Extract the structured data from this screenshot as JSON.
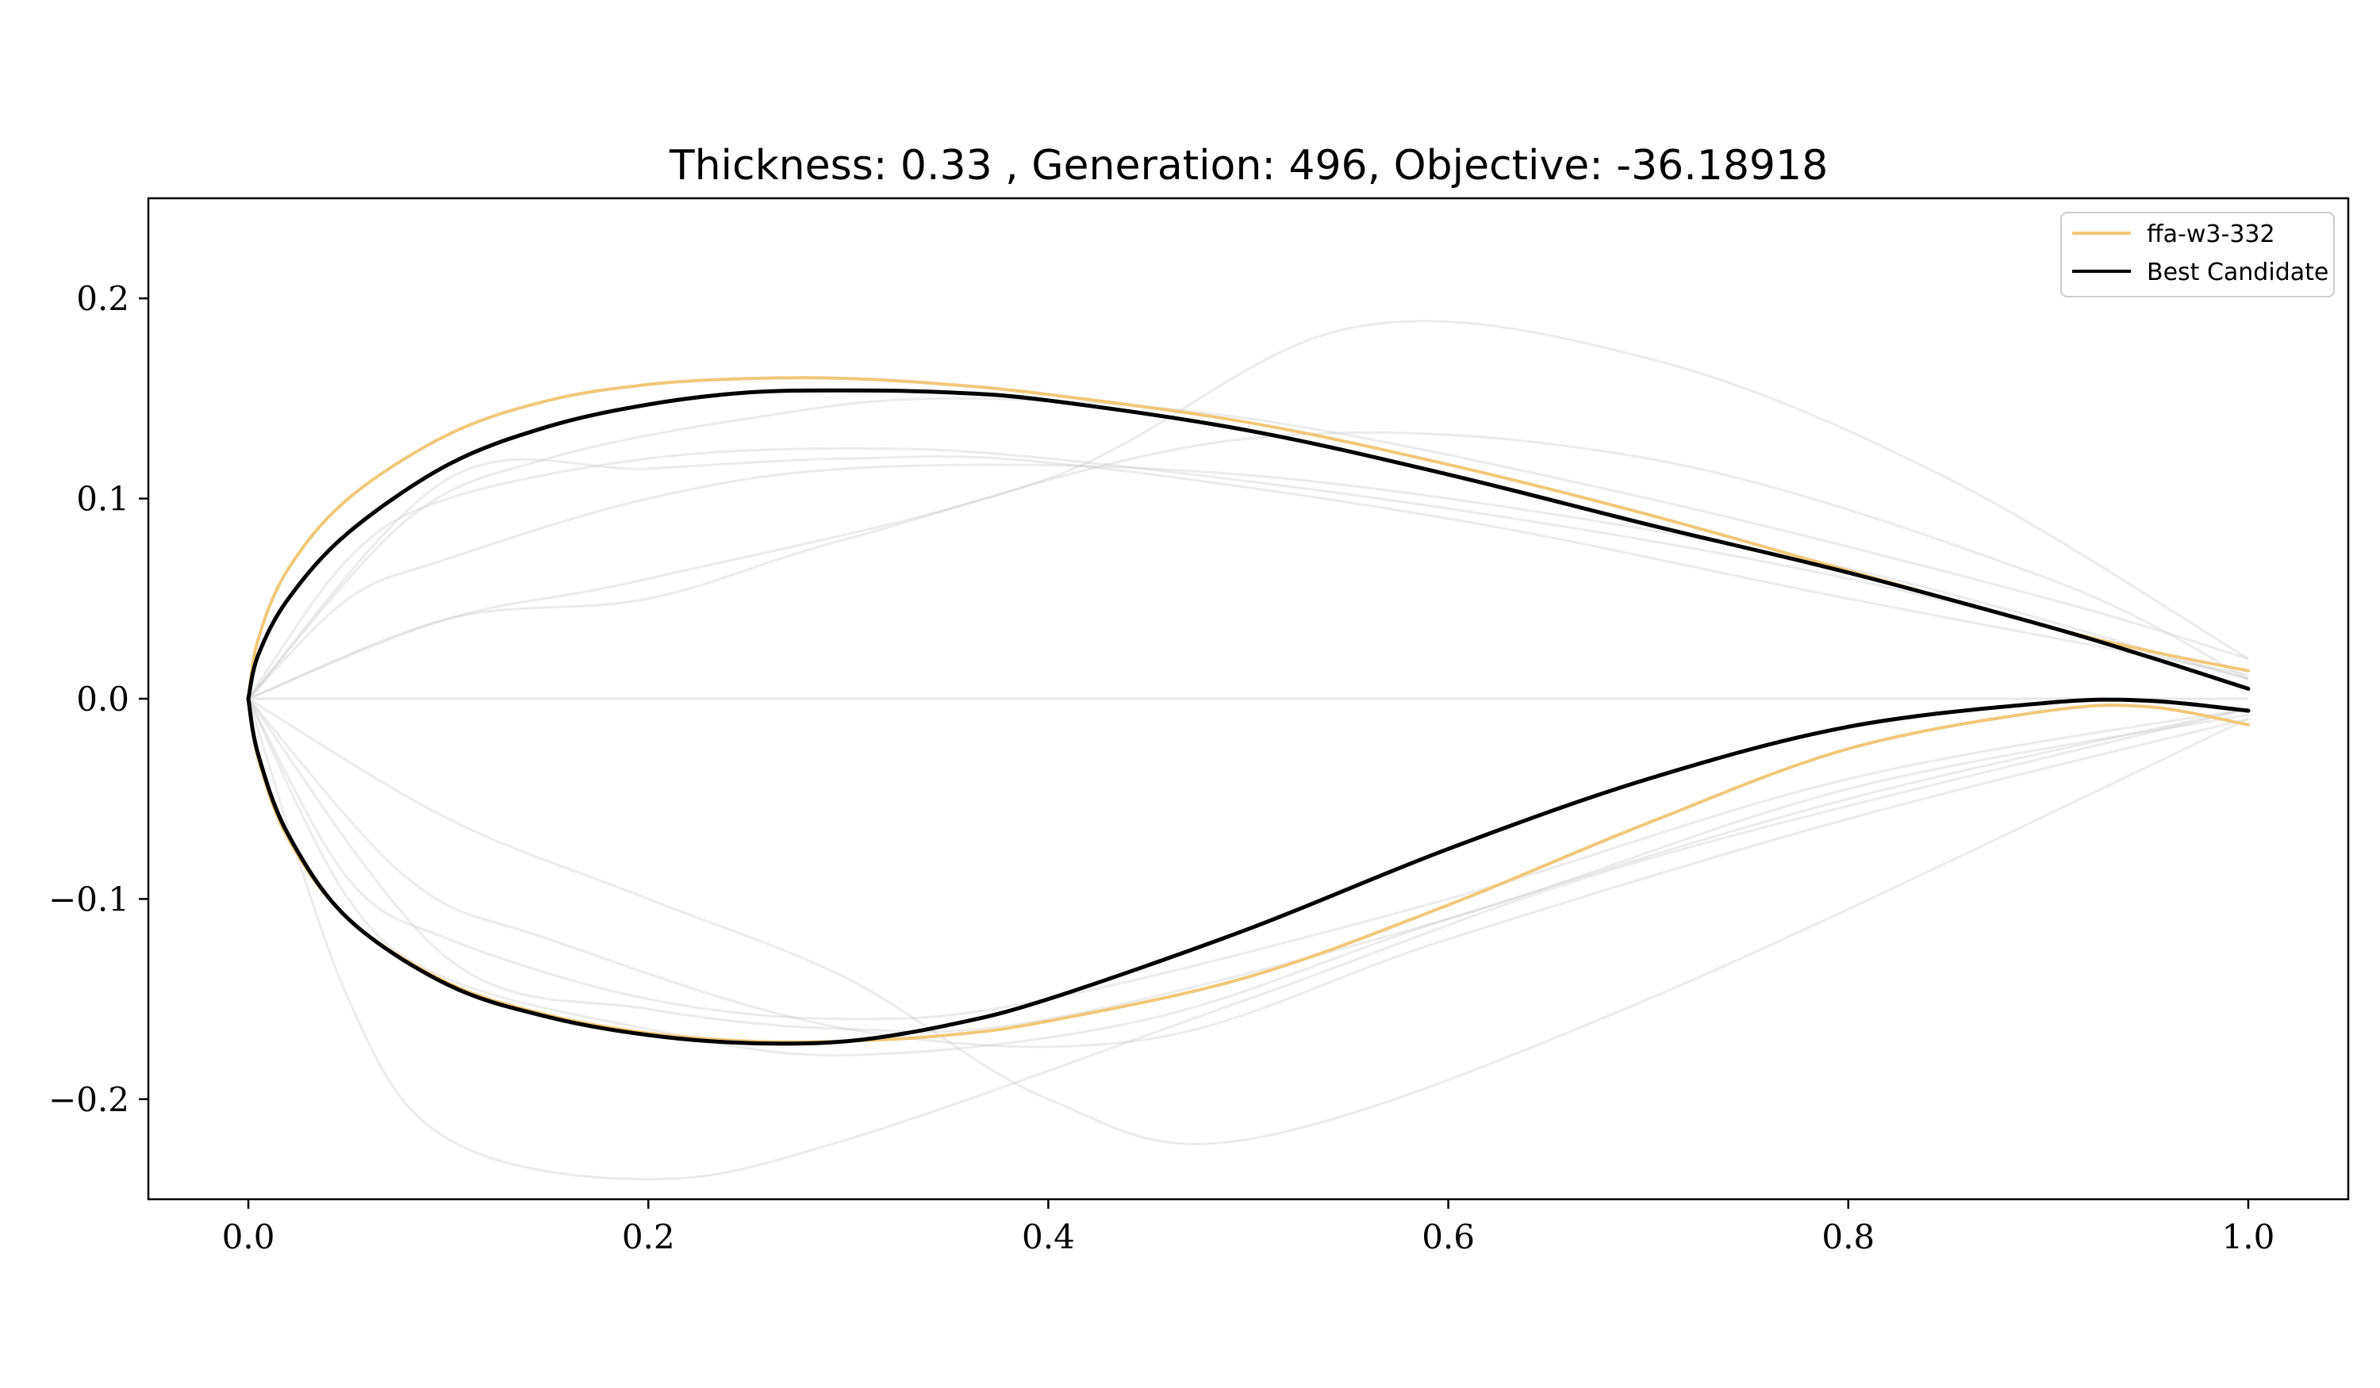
{
  "chart_data": {
    "type": "line",
    "title": "Thickness: 0.33 , Generation: 496, Objective: -36.18918",
    "xlabel": "",
    "ylabel": "",
    "xlim": [
      -0.05,
      1.05
    ],
    "ylim": [
      -0.25,
      0.25
    ],
    "xticks": [
      0.0,
      0.2,
      0.4,
      0.6,
      0.8,
      1.0
    ],
    "xtick_labels": [
      "0.0",
      "0.2",
      "0.4",
      "0.6",
      "0.8",
      "1.0"
    ],
    "yticks": [
      -0.2,
      -0.1,
      0.0,
      0.1,
      0.2
    ],
    "ytick_labels": [
      "−0.2",
      "−0.1",
      "0.0",
      "0.1",
      "0.2"
    ],
    "grid": false,
    "legend_position": "top-right",
    "series": [
      {
        "name": "ffa-w3-332",
        "color": "#f0c87a",
        "upper": {
          "x": [
            0,
            0.005,
            0.02,
            0.05,
            0.1,
            0.15,
            0.2,
            0.25,
            0.3,
            0.35,
            0.4,
            0.5,
            0.6,
            0.7,
            0.8,
            0.9,
            0.95,
            1.0
          ],
          "y": [
            0,
            0.03,
            0.065,
            0.1,
            0.132,
            0.149,
            0.157,
            0.16,
            0.16,
            0.157,
            0.152,
            0.138,
            0.117,
            0.092,
            0.064,
            0.036,
            0.024,
            0.014
          ]
        },
        "lower": {
          "x": [
            0,
            0.005,
            0.02,
            0.05,
            0.1,
            0.15,
            0.2,
            0.25,
            0.3,
            0.35,
            0.4,
            0.5,
            0.6,
            0.7,
            0.8,
            0.9,
            0.95,
            1.0
          ],
          "y": [
            0,
            -0.03,
            -0.07,
            -0.11,
            -0.142,
            -0.158,
            -0.167,
            -0.171,
            -0.171,
            -0.168,
            -0.161,
            -0.139,
            -0.103,
            -0.062,
            -0.025,
            -0.006,
            -0.004,
            -0.013
          ]
        }
      },
      {
        "name": "Best Candidate",
        "color": "#000000",
        "upper": {
          "x": [
            0,
            0.005,
            0.02,
            0.05,
            0.1,
            0.15,
            0.2,
            0.25,
            0.3,
            0.35,
            0.4,
            0.5,
            0.6,
            0.7,
            0.8,
            0.9,
            0.95,
            1.0
          ],
          "y": [
            0,
            0.022,
            0.05,
            0.083,
            0.117,
            0.136,
            0.147,
            0.153,
            0.154,
            0.153,
            0.149,
            0.134,
            0.112,
            0.087,
            0.063,
            0.036,
            0.021,
            0.005
          ]
        },
        "lower": {
          "x": [
            0,
            0.005,
            0.02,
            0.05,
            0.1,
            0.15,
            0.2,
            0.25,
            0.3,
            0.35,
            0.4,
            0.5,
            0.6,
            0.7,
            0.8,
            0.9,
            0.95,
            1.0
          ],
          "y": [
            0,
            -0.028,
            -0.068,
            -0.11,
            -0.143,
            -0.159,
            -0.168,
            -0.172,
            -0.171,
            -0.163,
            -0.15,
            -0.115,
            -0.075,
            -0.04,
            -0.014,
            -0.002,
            -0.001,
            -0.006
          ]
        }
      }
    ],
    "faint_candidates": [
      {
        "upper": [
          [
            0,
            0
          ],
          [
            0.05,
            0.07
          ],
          [
            0.1,
            0.1
          ],
          [
            0.2,
            0.12
          ],
          [
            0.3,
            0.125
          ],
          [
            0.4,
            0.12
          ],
          [
            0.6,
            0.095
          ],
          [
            0.8,
            0.06
          ],
          [
            1.0,
            0.01
          ]
        ],
        "lower": [
          [
            0,
            0
          ],
          [
            0.05,
            -0.09
          ],
          [
            0.1,
            -0.12
          ],
          [
            0.2,
            -0.15
          ],
          [
            0.3,
            -0.16
          ],
          [
            0.4,
            -0.15
          ],
          [
            0.6,
            -0.1
          ],
          [
            0.8,
            -0.04
          ],
          [
            1.0,
            -0.005
          ]
        ]
      },
      {
        "upper": [
          [
            0,
            0
          ],
          [
            0.05,
            0.05
          ],
          [
            0.1,
            0.07
          ],
          [
            0.2,
            0.1
          ],
          [
            0.3,
            0.115
          ],
          [
            0.45,
            0.115
          ],
          [
            0.6,
            0.1
          ],
          [
            0.8,
            0.065
          ],
          [
            1.0,
            0.01
          ]
        ],
        "lower": [
          [
            0,
            0
          ],
          [
            0.05,
            -0.1
          ],
          [
            0.1,
            -0.14
          ],
          [
            0.2,
            -0.165
          ],
          [
            0.3,
            -0.178
          ],
          [
            0.45,
            -0.16
          ],
          [
            0.6,
            -0.11
          ],
          [
            0.8,
            -0.05
          ],
          [
            1.0,
            -0.005
          ]
        ]
      },
      {
        "upper": [
          [
            0,
            0
          ],
          [
            0.1,
            0.04
          ],
          [
            0.2,
            0.06
          ],
          [
            0.4,
            0.11
          ],
          [
            0.55,
            0.185
          ],
          [
            0.7,
            0.17
          ],
          [
            0.85,
            0.11
          ],
          [
            1.0,
            0.02
          ]
        ],
        "lower": [
          [
            0,
            0
          ],
          [
            0.05,
            -0.15
          ],
          [
            0.1,
            -0.22
          ],
          [
            0.2,
            -0.24
          ],
          [
            0.3,
            -0.22
          ],
          [
            0.5,
            -0.15
          ],
          [
            0.7,
            -0.08
          ],
          [
            1.0,
            -0.005
          ]
        ]
      },
      {
        "upper": [
          [
            0,
            0
          ],
          [
            0.08,
            0.09
          ],
          [
            0.15,
            0.12
          ],
          [
            0.25,
            0.14
          ],
          [
            0.35,
            0.15
          ],
          [
            0.5,
            0.14
          ],
          [
            0.7,
            0.1
          ],
          [
            0.9,
            0.05
          ],
          [
            1.0,
            0.02
          ]
        ],
        "lower": [
          [
            0,
            0
          ],
          [
            0.08,
            -0.09
          ],
          [
            0.15,
            -0.12
          ],
          [
            0.3,
            -0.165
          ],
          [
            0.45,
            -0.17
          ],
          [
            0.6,
            -0.12
          ],
          [
            0.8,
            -0.06
          ],
          [
            1.0,
            -0.01
          ]
        ]
      },
      {
        "upper": [
          [
            0,
            0
          ],
          [
            0.1,
            0.11
          ],
          [
            0.2,
            0.115
          ],
          [
            0.3,
            0.12
          ],
          [
            0.4,
            0.118
          ],
          [
            0.6,
            0.09
          ],
          [
            0.8,
            0.05
          ],
          [
            1.0,
            0.012
          ]
        ],
        "lower": [
          [
            0,
            0
          ],
          [
            0.1,
            -0.13
          ],
          [
            0.2,
            -0.155
          ],
          [
            0.3,
            -0.165
          ],
          [
            0.4,
            -0.16
          ],
          [
            0.6,
            -0.11
          ],
          [
            0.8,
            -0.045
          ],
          [
            1.0,
            -0.008
          ]
        ]
      },
      {
        "upper": [
          [
            0,
            0
          ],
          [
            0.1,
            0.04
          ],
          [
            0.2,
            0.05
          ],
          [
            0.3,
            0.08
          ],
          [
            0.5,
            0.13
          ],
          [
            0.7,
            0.12
          ],
          [
            0.9,
            0.06
          ],
          [
            1.0,
            0.01
          ]
        ],
        "lower": [
          [
            0,
            0
          ],
          [
            0.1,
            -0.06
          ],
          [
            0.2,
            -0.1
          ],
          [
            0.3,
            -0.14
          ],
          [
            0.4,
            -0.2
          ],
          [
            0.5,
            -0.22
          ],
          [
            0.7,
            -0.15
          ],
          [
            1.0,
            -0.01
          ]
        ]
      }
    ]
  }
}
